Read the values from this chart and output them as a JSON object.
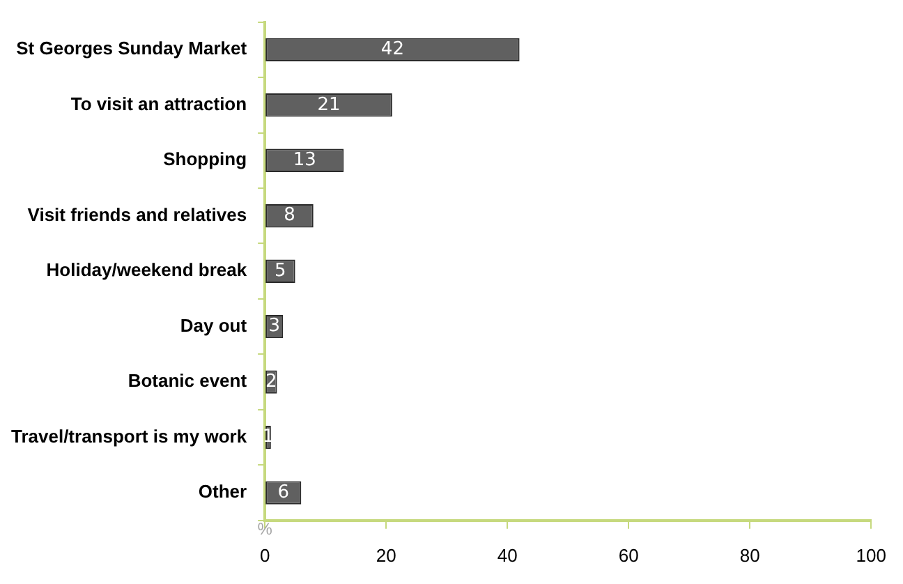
{
  "chart_data": {
    "type": "bar",
    "orientation": "horizontal",
    "xlabel": "%",
    "categories": [
      "St Georges Sunday Market",
      "To visit an attraction",
      "Shopping",
      "Visit friends and relatives",
      "Holiday/weekend break",
      "Day out",
      "Botanic event",
      "Travel/transport is my work",
      "Other"
    ],
    "values": [
      42,
      21,
      13,
      8,
      5,
      3,
      2,
      1,
      6
    ],
    "color": "#606060",
    "xlim": [
      0,
      100
    ],
    "xticks": [
      0,
      20,
      40,
      60,
      80,
      100
    ],
    "data_labels": true,
    "grid": false,
    "legend": false
  }
}
